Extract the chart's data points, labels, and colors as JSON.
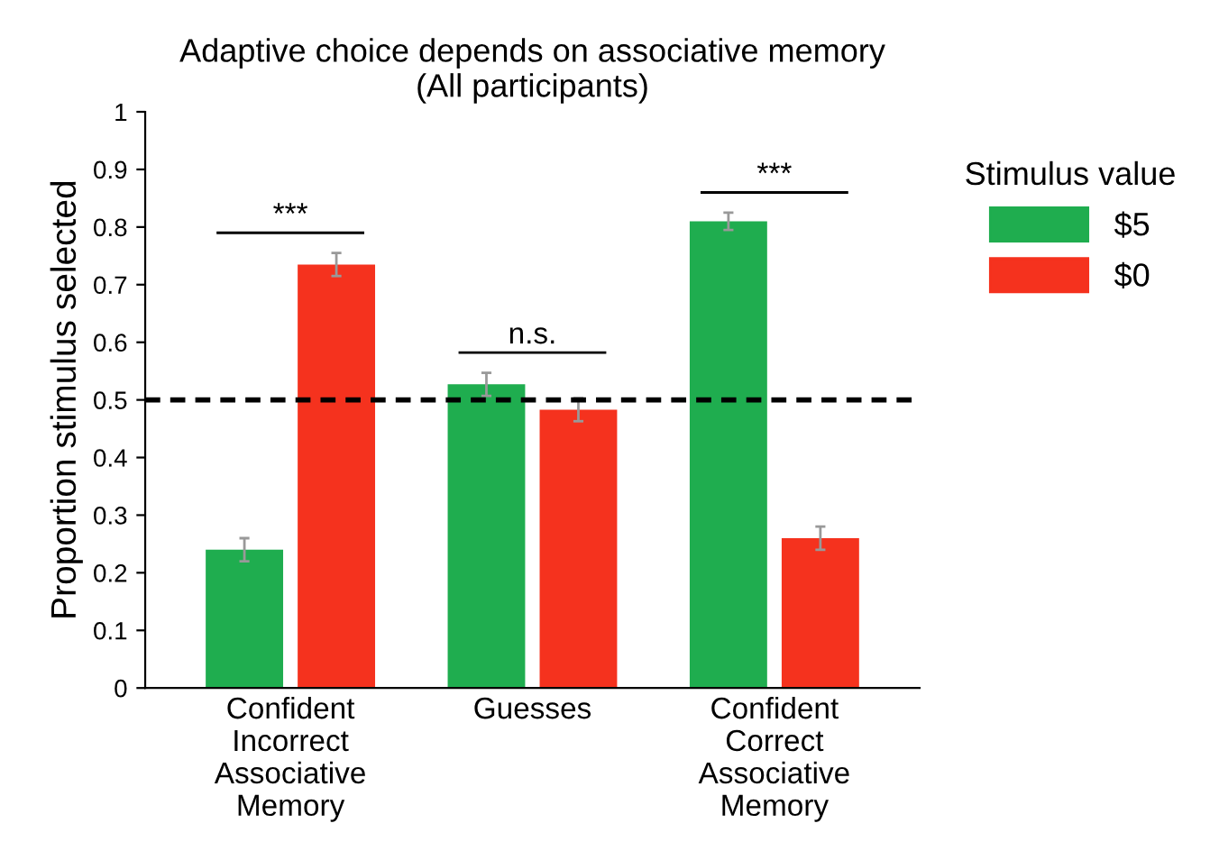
{
  "chart_data": {
    "type": "bar",
    "title": "Adaptive choice depends on associative memory\n(All participants)",
    "ylabel": "Proportion stimulus selected",
    "legend_title": "Stimulus value",
    "legend": "right",
    "categories": [
      "Confident\nIncorrect\nAssociative\nMemory",
      "Guesses",
      "Confident\nCorrect\nAssociative\nMemory"
    ],
    "series": [
      {
        "name": "$5",
        "color": "#1fad4f",
        "values": [
          0.24,
          0.527,
          0.81
        ],
        "errors": [
          0.02,
          0.02,
          0.015
        ]
      },
      {
        "name": "$0",
        "color": "#f5321e",
        "values": [
          0.735,
          0.483,
          0.26
        ],
        "errors": [
          0.02,
          0.02,
          0.02
        ]
      }
    ],
    "ylim": [
      0,
      1
    ],
    "yticks": [
      0,
      0.1,
      0.2,
      0.3,
      0.4,
      0.5,
      0.6,
      0.7,
      0.8,
      0.9,
      1
    ],
    "ref_lines": [
      {
        "axis": "y",
        "value": 0.5,
        "color": "#000000",
        "line_style": "dashed"
      }
    ],
    "annotations": [
      "***",
      "n.s.",
      "***"
    ],
    "grid": false
  }
}
